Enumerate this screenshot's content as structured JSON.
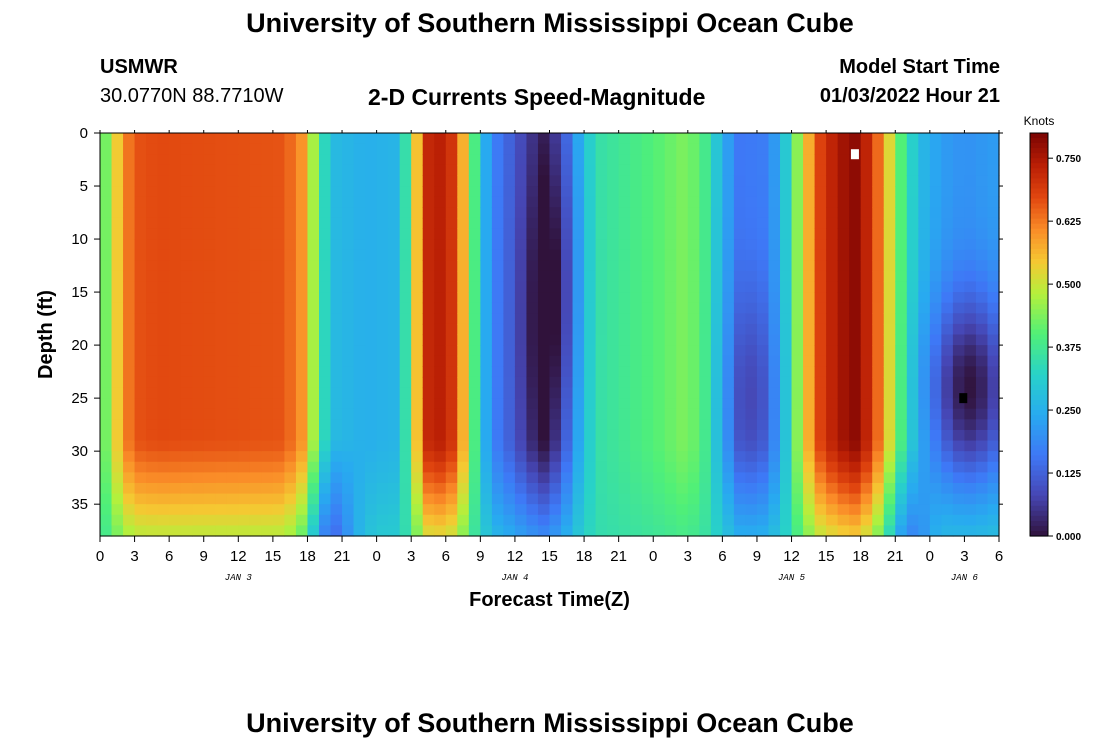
{
  "header": {
    "title": "University of Southern Mississippi Ocean Cube",
    "station": "USMWR",
    "coords": "30.0770N  88.7710W",
    "subtitle": "2-D Currents Speed-Magnitude",
    "start_label": "Model Start Time",
    "start_value": "01/03/2022 Hour 21"
  },
  "footer": {
    "title": "University of Southern Mississippi Ocean Cube"
  },
  "chart_data": {
    "type": "heatmap",
    "title": "2-D Currents Speed-Magnitude",
    "xlabel": "Forecast Time(Z)",
    "ylabel": "Depth (ft)",
    "x_unit": "hours since 00Z Jan 3",
    "xlim": [
      0,
      78
    ],
    "ylim": [
      0,
      38
    ],
    "x_ticks": [
      {
        "v": 0,
        "label": "0"
      },
      {
        "v": 3,
        "label": "3"
      },
      {
        "v": 6,
        "label": "6"
      },
      {
        "v": 9,
        "label": "9"
      },
      {
        "v": 12,
        "label": "12"
      },
      {
        "v": 15,
        "label": "15"
      },
      {
        "v": 18,
        "label": "18"
      },
      {
        "v": 21,
        "label": "21"
      },
      {
        "v": 24,
        "label": "0"
      },
      {
        "v": 27,
        "label": "3"
      },
      {
        "v": 30,
        "label": "6"
      },
      {
        "v": 33,
        "label": "9"
      },
      {
        "v": 36,
        "label": "12"
      },
      {
        "v": 39,
        "label": "15"
      },
      {
        "v": 42,
        "label": "18"
      },
      {
        "v": 45,
        "label": "21"
      },
      {
        "v": 48,
        "label": "0"
      },
      {
        "v": 51,
        "label": "3"
      },
      {
        "v": 54,
        "label": "6"
      },
      {
        "v": 57,
        "label": "9"
      },
      {
        "v": 60,
        "label": "12"
      },
      {
        "v": 63,
        "label": "15"
      },
      {
        "v": 66,
        "label": "18"
      },
      {
        "v": 69,
        "label": "21"
      },
      {
        "v": 72,
        "label": "0"
      },
      {
        "v": 75,
        "label": "3"
      },
      {
        "v": 78,
        "label": "6"
      }
    ],
    "date_labels": [
      {
        "v": 12,
        "label": "JAN 3"
      },
      {
        "v": 36,
        "label": "JAN 4"
      },
      {
        "v": 60,
        "label": "JAN 5"
      },
      {
        "v": 75,
        "label": "JAN 6"
      }
    ],
    "y_ticks": [
      0,
      5,
      10,
      15,
      20,
      25,
      30,
      35
    ],
    "colorbar": {
      "label": "Knots",
      "min": 0,
      "max": 0.8,
      "ticks": [
        "0.750",
        "0.625",
        "0.500",
        "0.375",
        "0.250",
        "0.125",
        "0.000"
      ],
      "tick_values": [
        0.75,
        0.625,
        0.5,
        0.375,
        0.25,
        0.125,
        0
      ]
    },
    "speed_model": {
      "x_step_hours": 1,
      "y_step_ft": 1,
      "surface_profile_knots": [
        {
          "t": 0,
          "v": 0.38
        },
        {
          "t": 1,
          "v": 0.48
        },
        {
          "t": 2,
          "v": 0.6
        },
        {
          "t": 3,
          "v": 0.66
        },
        {
          "t": 5,
          "v": 0.67
        },
        {
          "t": 16,
          "v": 0.66
        },
        {
          "t": 17.5,
          "v": 0.6
        },
        {
          "t": 18.5,
          "v": 0.47
        },
        {
          "t": 19.5,
          "v": 0.33
        },
        {
          "t": 20.5,
          "v": 0.27
        },
        {
          "t": 23,
          "v": 0.25
        },
        {
          "t": 25.5,
          "v": 0.26
        },
        {
          "t": 26.5,
          "v": 0.35
        },
        {
          "t": 27.5,
          "v": 0.55
        },
        {
          "t": 28.5,
          "v": 0.72
        },
        {
          "t": 30,
          "v": 0.74
        },
        {
          "t": 31,
          "v": 0.66
        },
        {
          "t": 32,
          "v": 0.48
        },
        {
          "t": 33,
          "v": 0.3
        },
        {
          "t": 34,
          "v": 0.18
        },
        {
          "t": 37,
          "v": 0.08
        },
        {
          "t": 38.5,
          "v": 0.05
        },
        {
          "t": 40,
          "v": 0.12
        },
        {
          "t": 41.5,
          "v": 0.25
        },
        {
          "t": 43,
          "v": 0.35
        },
        {
          "t": 48,
          "v": 0.4
        },
        {
          "t": 51,
          "v": 0.44
        },
        {
          "t": 52.5,
          "v": 0.38
        },
        {
          "t": 54,
          "v": 0.25
        },
        {
          "t": 55.5,
          "v": 0.16
        },
        {
          "t": 58,
          "v": 0.17
        },
        {
          "t": 59.5,
          "v": 0.3
        },
        {
          "t": 61,
          "v": 0.52
        },
        {
          "t": 62.5,
          "v": 0.68
        },
        {
          "t": 64,
          "v": 0.75
        },
        {
          "t": 65.5,
          "v": 0.78
        },
        {
          "t": 67,
          "v": 0.7
        },
        {
          "t": 68.5,
          "v": 0.52
        },
        {
          "t": 70,
          "v": 0.34
        },
        {
          "t": 71.5,
          "v": 0.26
        },
        {
          "t": 73,
          "v": 0.22
        },
        {
          "t": 75,
          "v": 0.2
        },
        {
          "t": 78,
          "v": 0.22
        }
      ],
      "lows": [
        {
          "t": 38.5,
          "d": 18,
          "st": 1.5,
          "sd": 12,
          "amp": 0.06
        },
        {
          "t": 40,
          "d": 14,
          "st": 1.3,
          "sd": 10,
          "amp": 0.06
        },
        {
          "t": 56.5,
          "d": 25,
          "st": 1.5,
          "sd": 7,
          "amp": 0.08
        },
        {
          "t": 75.5,
          "d": 24,
          "st": 2.5,
          "sd": 6,
          "amp": 0.2
        }
      ],
      "tail_lows": [
        {
          "t": 20,
          "st": 1.5,
          "amp": 0.17
        },
        {
          "t": 70,
          "st": 1.5,
          "amp": 0.15
        }
      ]
    }
  }
}
